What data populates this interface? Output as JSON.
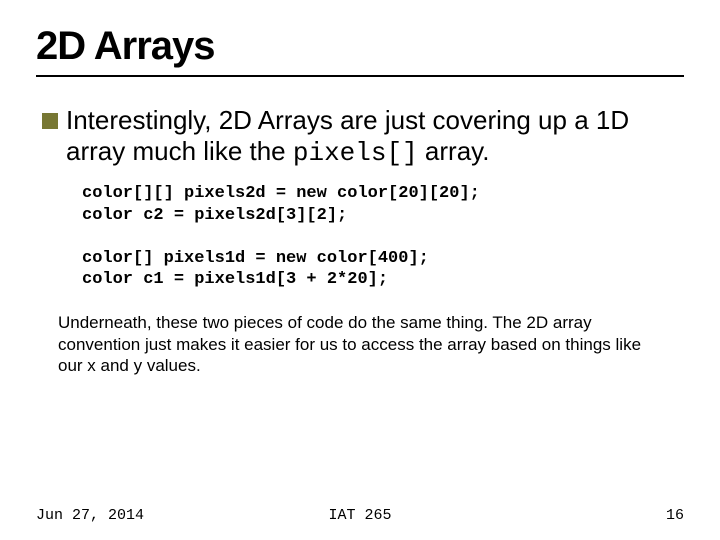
{
  "title": "2D Arrays",
  "bullet": {
    "pre": "Interestingly, 2D Arrays are just covering up a 1D array much like the ",
    "mono": "pixels[]",
    "post": " array."
  },
  "code1": {
    "line1": "color[][] pixels2d = new color[20][20];",
    "line2": "color c2 = pixels2d[3][2];"
  },
  "code2": {
    "line1": "color[] pixels1d = new color[400];",
    "line2": "color c1 = pixels1d[3 + 2*20];"
  },
  "explain": "Underneath, these two pieces of code do the same thing. The 2D array convention just makes it easier for us to access the array based on things like our x and y values.",
  "footer": {
    "date": "Jun 27, 2014",
    "course": "IAT 265",
    "page": "16"
  },
  "colors": {
    "bullet_box": "#777733",
    "text": "#000000",
    "background": "#ffffff"
  },
  "fonts": {
    "title_size_pt": 30,
    "body_size_pt": 20,
    "code_size_pt": 13,
    "explain_size_pt": 13,
    "footer_size_pt": 11
  }
}
